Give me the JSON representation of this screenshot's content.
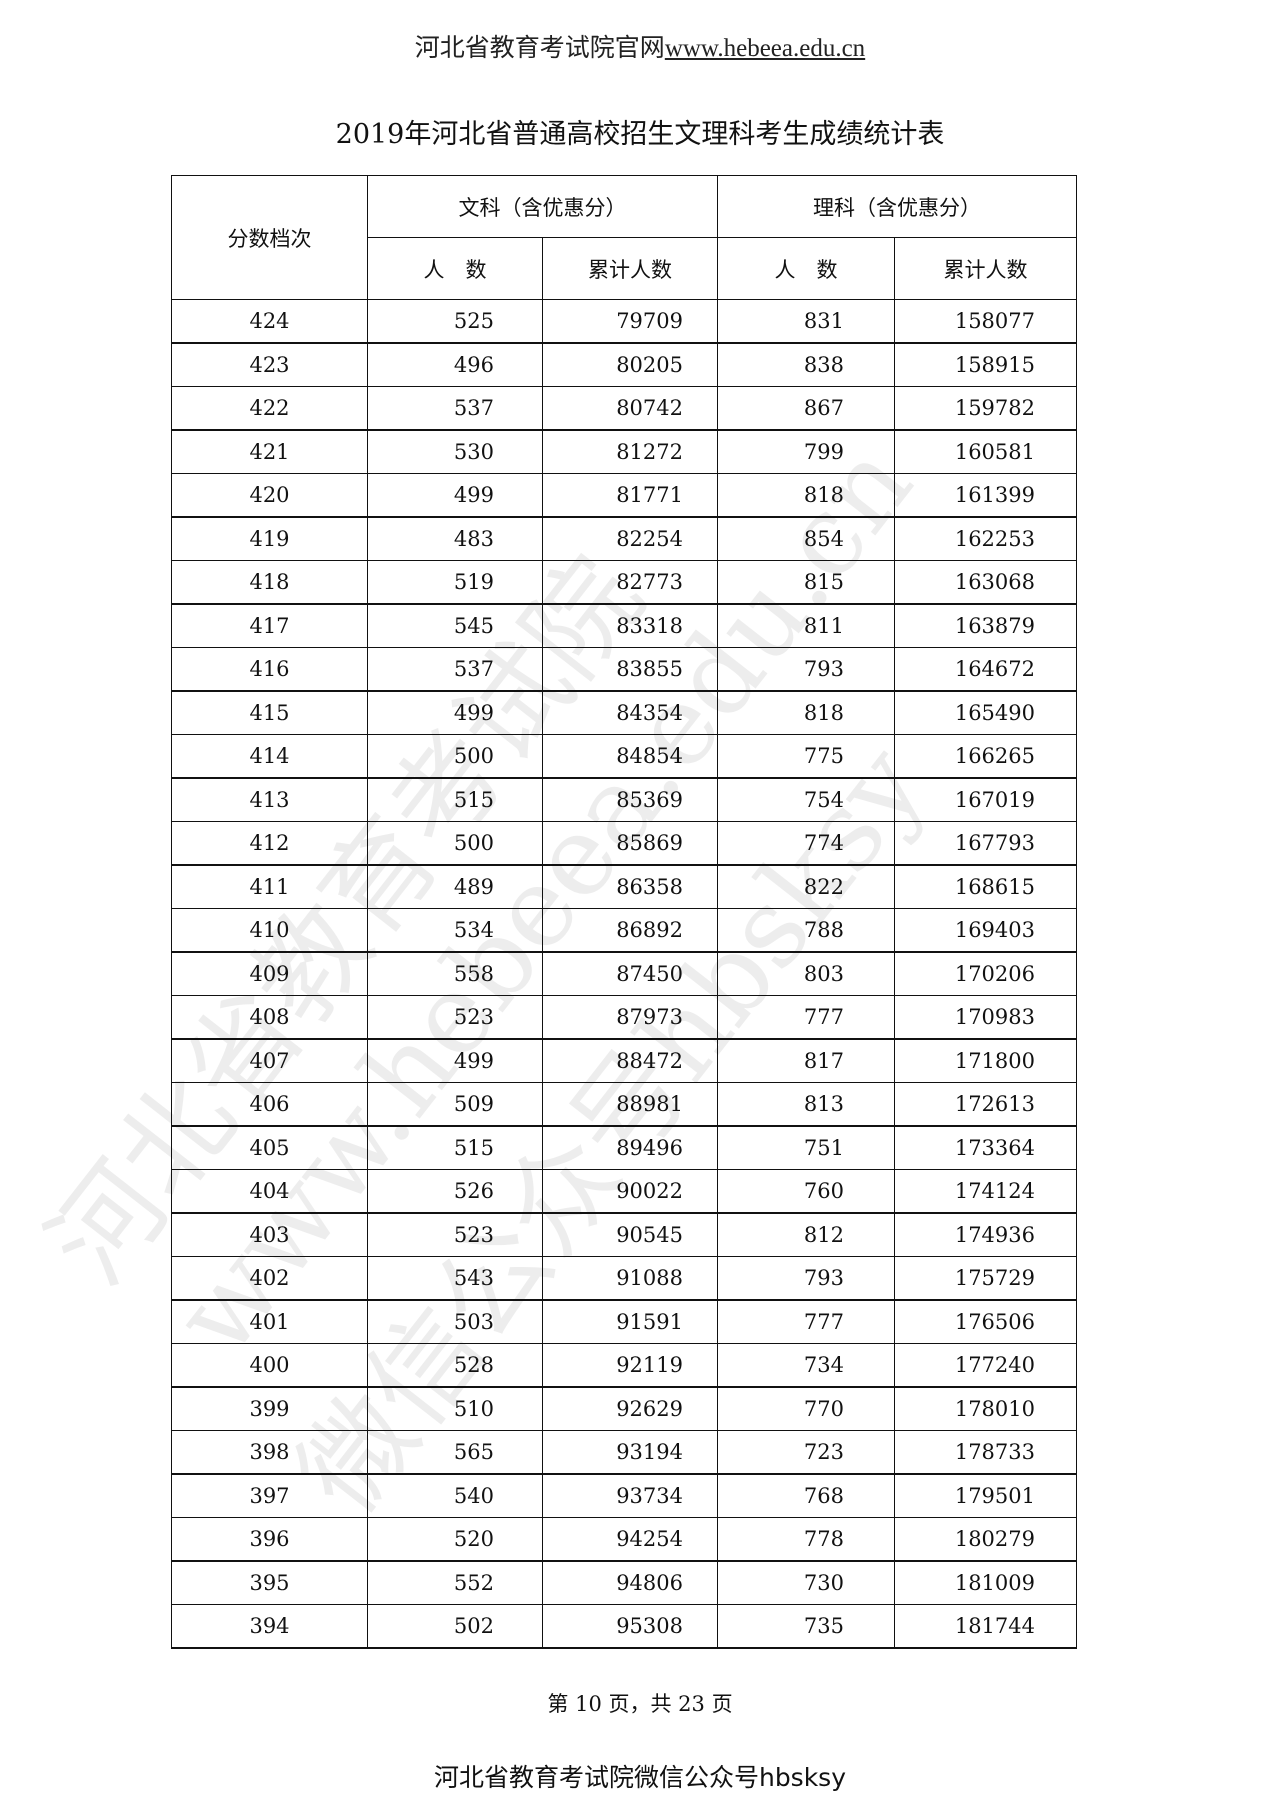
{
  "header": {
    "site_name": "河北省教育考试院官网",
    "site_url": "www.hebeea.edu.cn"
  },
  "title": "2019年河北省普通高校招生文理科考生成绩统计表",
  "table": {
    "score_header": "分数档次",
    "groups": [
      "文科（含优惠分）",
      "理科（含优惠分）"
    ],
    "sub_headers": [
      "人　数",
      "累计人数",
      "人　数",
      "累计人数"
    ],
    "rows": [
      [
        "424",
        "525",
        "79709",
        "831",
        "158077"
      ],
      [
        "423",
        "496",
        "80205",
        "838",
        "158915"
      ],
      [
        "422",
        "537",
        "80742",
        "867",
        "159782"
      ],
      [
        "421",
        "530",
        "81272",
        "799",
        "160581"
      ],
      [
        "420",
        "499",
        "81771",
        "818",
        "161399"
      ],
      [
        "419",
        "483",
        "82254",
        "854",
        "162253"
      ],
      [
        "418",
        "519",
        "82773",
        "815",
        "163068"
      ],
      [
        "417",
        "545",
        "83318",
        "811",
        "163879"
      ],
      [
        "416",
        "537",
        "83855",
        "793",
        "164672"
      ],
      [
        "415",
        "499",
        "84354",
        "818",
        "165490"
      ],
      [
        "414",
        "500",
        "84854",
        "775",
        "166265"
      ],
      [
        "413",
        "515",
        "85369",
        "754",
        "167019"
      ],
      [
        "412",
        "500",
        "85869",
        "774",
        "167793"
      ],
      [
        "411",
        "489",
        "86358",
        "822",
        "168615"
      ],
      [
        "410",
        "534",
        "86892",
        "788",
        "169403"
      ],
      [
        "409",
        "558",
        "87450",
        "803",
        "170206"
      ],
      [
        "408",
        "523",
        "87973",
        "777",
        "170983"
      ],
      [
        "407",
        "499",
        "88472",
        "817",
        "171800"
      ],
      [
        "406",
        "509",
        "88981",
        "813",
        "172613"
      ],
      [
        "405",
        "515",
        "89496",
        "751",
        "173364"
      ],
      [
        "404",
        "526",
        "90022",
        "760",
        "174124"
      ],
      [
        "403",
        "523",
        "90545",
        "812",
        "174936"
      ],
      [
        "402",
        "543",
        "91088",
        "793",
        "175729"
      ],
      [
        "401",
        "503",
        "91591",
        "777",
        "176506"
      ],
      [
        "400",
        "528",
        "92119",
        "734",
        "177240"
      ],
      [
        "399",
        "510",
        "92629",
        "770",
        "178010"
      ],
      [
        "398",
        "565",
        "93194",
        "723",
        "178733"
      ],
      [
        "397",
        "540",
        "93734",
        "768",
        "179501"
      ],
      [
        "396",
        "520",
        "94254",
        "778",
        "180279"
      ],
      [
        "395",
        "552",
        "94806",
        "730",
        "181009"
      ],
      [
        "394",
        "502",
        "95308",
        "735",
        "181744"
      ]
    ]
  },
  "footer": {
    "page_info": "第 10 页，共 23 页",
    "wechat": "河北省教育考试院微信公众号hbsksy"
  },
  "watermark": [
    "河北省教育考试院",
    "www.hebeea.edu.cn",
    "微信公众号hbsksy"
  ]
}
